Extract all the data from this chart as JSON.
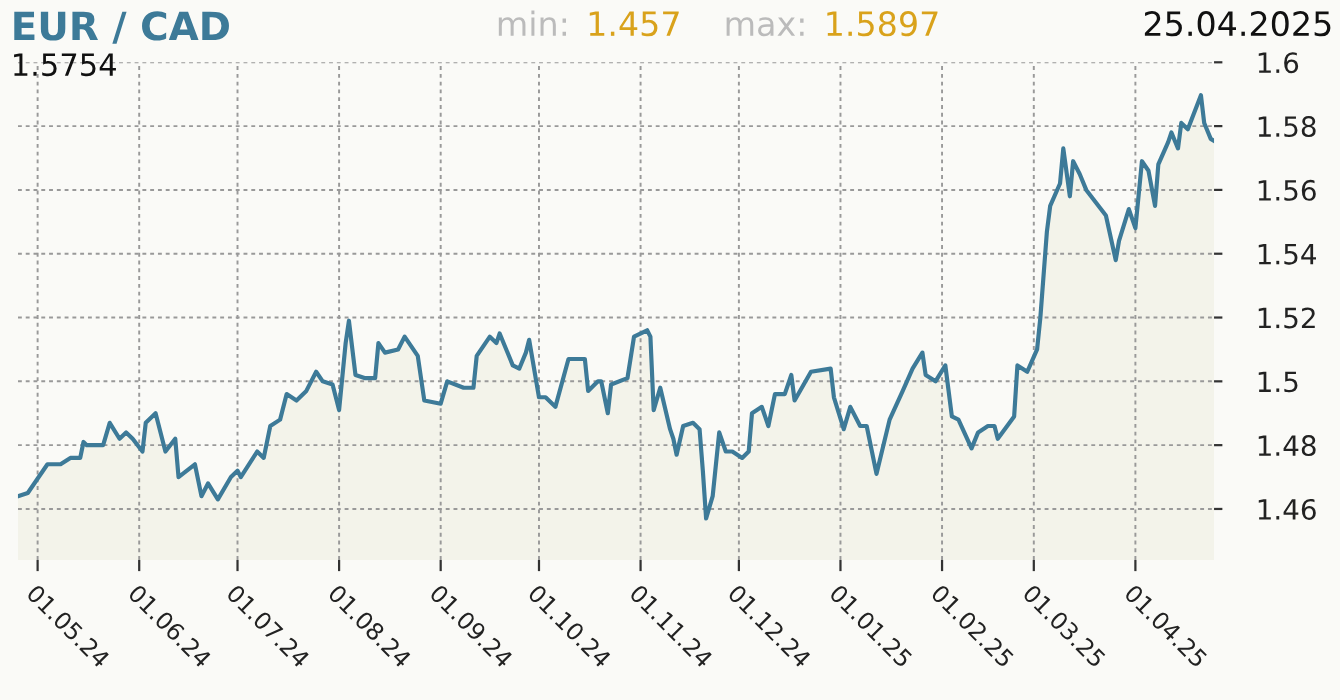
{
  "chart_data": {
    "type": "area",
    "title": "EUR / CAD",
    "annotations": [
      "min: 1.457",
      "max: 1.5897",
      "25.04.2025",
      "1.5754"
    ],
    "x": [
      "2024-04-25",
      "2024-04-28",
      "2024-05-04",
      "2024-05-08",
      "2024-05-11",
      "2024-05-14",
      "2024-05-15",
      "2024-05-16",
      "2024-05-21",
      "2024-05-23",
      "2024-05-26",
      "2024-05-28",
      "2024-05-30",
      "2024-06-02",
      "2024-06-03",
      "2024-06-06",
      "2024-06-09",
      "2024-06-12",
      "2024-06-13",
      "2024-06-18",
      "2024-06-20",
      "2024-06-22",
      "2024-06-25",
      "2024-06-29",
      "2024-07-01",
      "2024-07-02",
      "2024-07-07",
      "2024-07-09",
      "2024-07-11",
      "2024-07-14",
      "2024-07-16",
      "2024-07-19",
      "2024-07-22",
      "2024-07-25",
      "2024-07-27",
      "2024-07-30",
      "2024-08-01",
      "2024-08-03",
      "2024-08-04",
      "2024-08-06",
      "2024-08-09",
      "2024-08-12",
      "2024-08-13",
      "2024-08-15",
      "2024-08-19",
      "2024-08-21",
      "2024-08-25",
      "2024-08-27",
      "2024-09-01",
      "2024-09-03",
      "2024-09-08",
      "2024-09-11",
      "2024-09-12",
      "2024-09-16",
      "2024-09-18",
      "2024-09-19",
      "2024-09-23",
      "2024-09-25",
      "2024-09-27",
      "2024-09-28",
      "2024-10-01",
      "2024-10-03",
      "2024-10-06",
      "2024-10-10",
      "2024-10-15",
      "2024-10-16",
      "2024-10-19",
      "2024-10-20",
      "2024-10-22",
      "2024-10-23",
      "2024-10-28",
      "2024-10-30",
      "2024-11-03",
      "2024-11-04",
      "2024-11-05",
      "2024-11-07",
      "2024-11-10",
      "2024-11-11",
      "2024-11-12",
      "2024-11-14",
      "2024-11-17",
      "2024-11-19",
      "2024-11-20",
      "2024-11-21",
      "2024-11-23",
      "2024-11-25",
      "2024-11-27",
      "2024-11-29",
      "2024-12-02",
      "2024-12-04",
      "2024-12-05",
      "2024-12-08",
      "2024-12-10",
      "2024-12-12",
      "2024-12-15",
      "2024-12-17",
      "2024-12-18",
      "2024-12-23",
      "2024-12-29",
      "2024-12-30",
      "2025-01-02",
      "2025-01-04",
      "2025-01-07",
      "2025-01-09",
      "2025-01-12",
      "2025-01-16",
      "2025-01-20",
      "2025-01-23",
      "2025-01-26",
      "2025-01-27",
      "2025-01-30",
      "2025-02-02",
      "2025-02-04",
      "2025-02-06",
      "2025-02-10",
      "2025-02-12",
      "2025-02-15",
      "2025-02-17",
      "2025-02-18",
      "2025-02-23",
      "2025-02-24",
      "2025-02-27",
      "2025-03-02",
      "2025-03-03",
      "2025-03-05",
      "2025-03-06",
      "2025-03-09",
      "2025-03-10",
      "2025-03-12",
      "2025-03-13",
      "2025-03-15",
      "2025-03-17",
      "2025-03-20",
      "2025-03-23",
      "2025-03-26",
      "2025-03-27",
      "2025-03-30",
      "2025-04-01",
      "2025-04-03",
      "2025-04-05",
      "2025-04-07",
      "2025-04-08",
      "2025-04-11",
      "2025-04-12",
      "2025-04-14",
      "2025-04-15",
      "2025-04-17",
      "2025-04-21",
      "2025-04-22",
      "2025-04-24",
      "2025-04-25"
    ],
    "series": [
      {
        "color": "#3d7a98",
        "values": [
          1.464,
          1.465,
          1.474,
          1.474,
          1.476,
          1.476,
          1.481,
          1.48,
          1.48,
          1.487,
          1.482,
          1.484,
          1.482,
          1.478,
          1.487,
          1.49,
          1.478,
          1.482,
          1.47,
          1.474,
          1.464,
          1.468,
          1.463,
          1.47,
          1.472,
          1.47,
          1.478,
          1.476,
          1.486,
          1.488,
          1.496,
          1.494,
          1.497,
          1.503,
          1.5,
          1.499,
          1.491,
          1.512,
          1.519,
          1.502,
          1.501,
          1.501,
          1.512,
          1.509,
          1.51,
          1.514,
          1.508,
          1.494,
          1.493,
          1.5,
          1.498,
          1.498,
          1.508,
          1.514,
          1.512,
          1.515,
          1.505,
          1.504,
          1.509,
          1.513,
          1.495,
          1.495,
          1.492,
          1.507,
          1.507,
          1.497,
          1.5,
          1.5,
          1.49,
          1.499,
          1.501,
          1.514,
          1.516,
          1.514,
          1.491,
          1.498,
          1.485,
          1.482,
          1.477,
          1.486,
          1.487,
          1.485,
          1.472,
          1.457,
          1.464,
          1.484,
          1.478,
          1.478,
          1.476,
          1.478,
          1.49,
          1.492,
          1.486,
          1.496,
          1.496,
          1.502,
          1.494,
          1.503,
          1.504,
          1.495,
          1.485,
          1.492,
          1.486,
          1.486,
          1.471,
          1.488,
          1.497,
          1.504,
          1.509,
          1.502,
          1.5,
          1.505,
          1.489,
          1.488,
          1.479,
          1.484,
          1.486,
          1.486,
          1.482,
          1.489,
          1.505,
          1.503,
          1.51,
          1.52,
          1.547,
          1.555,
          1.562,
          1.573,
          1.558,
          1.569,
          1.565,
          1.56,
          1.556,
          1.552,
          1.538,
          1.544,
          1.554,
          1.548,
          1.569,
          1.566,
          1.555,
          1.568,
          1.575,
          1.578,
          1.573,
          1.581,
          1.579,
          1.5897,
          1.581,
          1.576,
          1.5754
        ]
      }
    ],
    "xlim": [
      "2024-04-25",
      "2025-04-25"
    ],
    "xticks": [
      {
        "value": "2024-05-01",
        "label": "01.05.24"
      },
      {
        "value": "2024-06-01",
        "label": "01.06.24"
      },
      {
        "value": "2024-07-01",
        "label": "01.07.24"
      },
      {
        "value": "2024-08-01",
        "label": "01.08.24"
      },
      {
        "value": "2024-09-01",
        "label": "01.09.24"
      },
      {
        "value": "2024-10-01",
        "label": "01.10.24"
      },
      {
        "value": "2024-11-01",
        "label": "01.11.24"
      },
      {
        "value": "2024-12-01",
        "label": "01.12.24"
      },
      {
        "value": "2025-01-01",
        "label": "01.01.25"
      },
      {
        "value": "2025-02-01",
        "label": "01.02.25"
      },
      {
        "value": "2025-03-01",
        "label": "01.03.25"
      },
      {
        "value": "2025-04-01",
        "label": "01.04.25"
      }
    ],
    "ylim": [
      1.444,
      1.6
    ],
    "yticks": [
      1.46,
      1.48,
      1.5,
      1.52,
      1.54,
      1.56,
      1.58,
      1.6
    ],
    "grid": true
  }
}
